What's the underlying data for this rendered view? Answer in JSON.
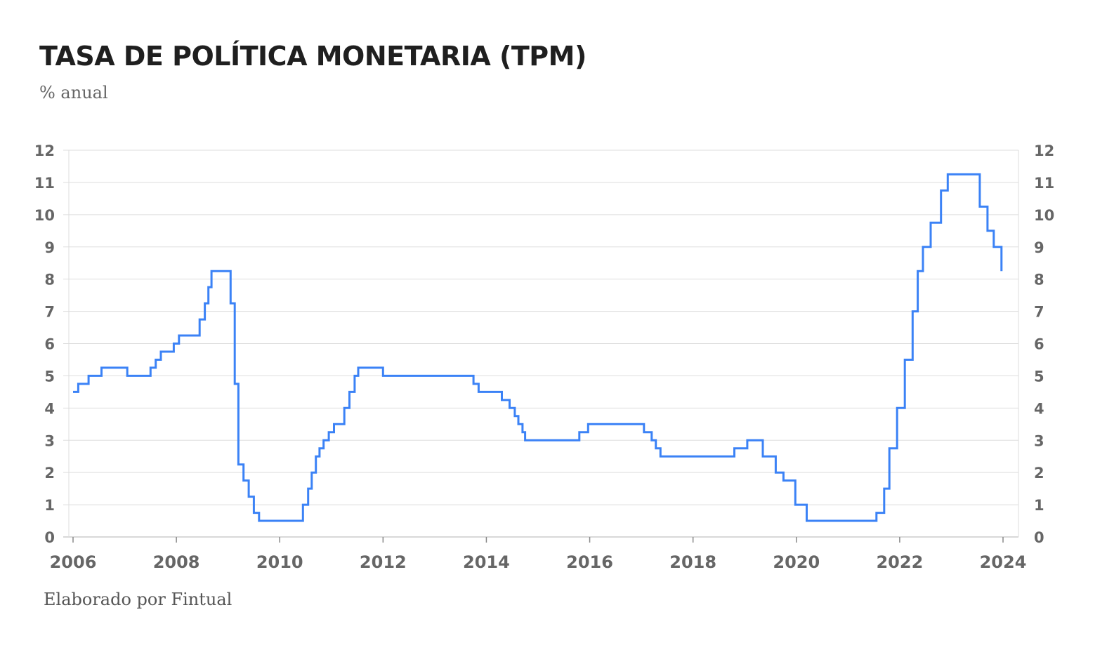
{
  "header": {
    "title": "TASA DE POLÍTICA MONETARIA (TPM)",
    "subtitle": "% anual"
  },
  "footer": {
    "credit": "Elaborado por Fintual"
  },
  "colors": {
    "line": "#3b82f6",
    "grid": "#dddddd",
    "axis": "#888888",
    "text": "#666666"
  },
  "chart_data": {
    "type": "line",
    "title": "TASA DE POLÍTICA MONETARIA (TPM)",
    "subtitle": "% anual",
    "xlabel": "",
    "ylabel": "",
    "x_ticks": [
      "2006",
      "2008",
      "2010",
      "2012",
      "2014",
      "2016",
      "2018",
      "2020",
      "2022",
      "2024"
    ],
    "y_ticks": [
      "0",
      "1",
      "2",
      "3",
      "4",
      "5",
      "6",
      "7",
      "8",
      "9",
      "10",
      "11",
      "12"
    ],
    "xlim": [
      2006,
      2024
    ],
    "ylim": [
      0,
      12
    ],
    "grid": true,
    "legend": "none",
    "dual_y_axis": true,
    "step": true,
    "series": [
      {
        "x": [
          2006.0,
          2006.1,
          2006.3,
          2006.55,
          2007.05,
          2007.5,
          2007.6,
          2007.7,
          2007.95,
          2008.05,
          2008.45,
          2008.55,
          2008.62,
          2008.68,
          2009.05,
          2009.13,
          2009.2,
          2009.3,
          2009.4,
          2009.5,
          2009.6,
          2010.45,
          2010.55,
          2010.62,
          2010.7,
          2010.77,
          2010.85,
          2010.95,
          2011.05,
          2011.25,
          2011.35,
          2011.45,
          2011.52,
          2011.58,
          2012.0,
          2013.75,
          2013.85,
          2014.3,
          2014.45,
          2014.55,
          2014.62,
          2014.7,
          2014.75,
          2015.8,
          2015.97,
          2017.05,
          2017.2,
          2017.28,
          2017.37,
          2018.8,
          2019.05,
          2019.35,
          2019.6,
          2019.75,
          2019.98,
          2020.2,
          2020.25,
          2021.55,
          2021.7,
          2021.8,
          2021.95,
          2022.1,
          2022.25,
          2022.35,
          2022.45,
          2022.6,
          2022.8,
          2022.93,
          2023.55,
          2023.7,
          2023.82,
          2023.97
        ],
        "y": [
          4.5,
          4.75,
          5.0,
          5.25,
          5.0,
          5.25,
          5.5,
          5.75,
          6.0,
          6.25,
          6.75,
          7.25,
          7.75,
          8.25,
          7.25,
          4.75,
          2.25,
          1.75,
          1.25,
          0.75,
          0.5,
          1.0,
          1.5,
          2.0,
          2.5,
          2.75,
          3.0,
          3.25,
          3.5,
          4.0,
          4.5,
          5.0,
          5.25,
          5.25,
          5.0,
          4.75,
          4.5,
          4.25,
          4.0,
          3.75,
          3.5,
          3.25,
          3.0,
          3.25,
          3.5,
          3.25,
          3.0,
          2.75,
          2.5,
          2.75,
          3.0,
          2.5,
          2.0,
          1.75,
          1.0,
          0.5,
          0.5,
          0.75,
          1.5,
          2.75,
          4.0,
          5.5,
          7.0,
          8.25,
          9.0,
          9.75,
          10.75,
          11.25,
          10.25,
          9.5,
          9.0,
          8.25
        ]
      }
    ]
  }
}
